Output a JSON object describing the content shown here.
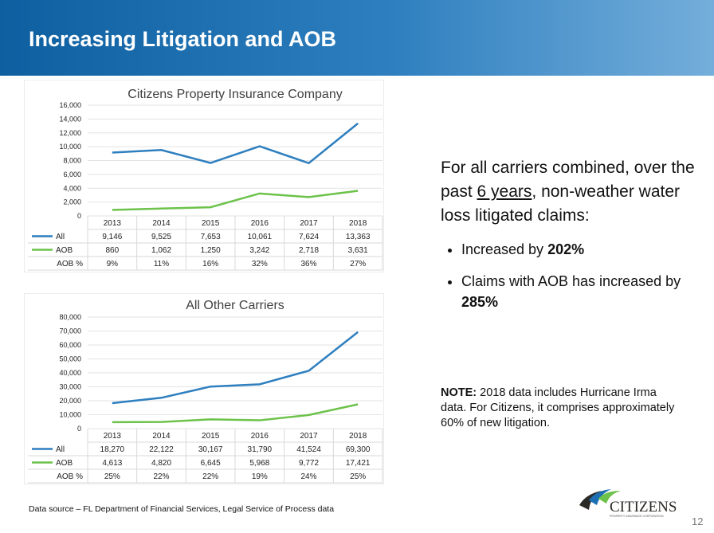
{
  "slide": {
    "title": "Increasing Litigation and AOB",
    "page_number": "12",
    "source": "Data source – FL Department of Financial Services, Legal Service of Process data",
    "logo_text": "CITIZENS",
    "logo_subtext": "PROPERTY INSURANCE CORPORATION"
  },
  "summary": {
    "line1": "For all carriers combined, over the past ",
    "years": "6 years",
    "line2": ", non-weather water loss litigated claims:",
    "bullet1_text": "Increased by ",
    "bullet1_value": "202%",
    "bullet2_text": "Claims with AOB has increased by ",
    "bullet2_value": "285%",
    "note_label": "NOTE:",
    "note_text": " 2018 data includes Hurricane Irma data. For Citizens, it comprises approximately 60% of new litigation."
  },
  "colors": {
    "all": "#2e7fbf",
    "aob": "#6cc24a",
    "banner": "#0d5fa0"
  },
  "chart_data": [
    {
      "type": "line",
      "title": "Citizens Property Insurance Company",
      "categories": [
        "2013",
        "2014",
        "2015",
        "2016",
        "2017",
        "2018"
      ],
      "ylim": [
        0,
        16000
      ],
      "yticks": [
        "0",
        "2,000",
        "4,000",
        "6,000",
        "8,000",
        "10,000",
        "12,000",
        "14,000",
        "16,000"
      ],
      "grid": true,
      "series": [
        {
          "name": "All",
          "values": [
            9146,
            9525,
            7653,
            10061,
            7624,
            13363
          ],
          "labels": [
            "9,146",
            "9,525",
            "7,653",
            "10,061",
            "7,624",
            "13,363"
          ]
        },
        {
          "name": "AOB",
          "values": [
            860,
            1062,
            1250,
            3242,
            2718,
            3631
          ],
          "labels": [
            "860",
            "1,062",
            "1,250",
            "3,242",
            "2,718",
            "3,631"
          ]
        }
      ],
      "extra_row": {
        "name": "AOB %",
        "labels": [
          "9%",
          "11%",
          "16%",
          "32%",
          "36%",
          "27%"
        ]
      }
    },
    {
      "type": "line",
      "title": "All Other Carriers",
      "categories": [
        "2013",
        "2014",
        "2015",
        "2016",
        "2017",
        "2018"
      ],
      "ylim": [
        0,
        80000
      ],
      "yticks": [
        "0",
        "10,000",
        "20,000",
        "30,000",
        "40,000",
        "50,000",
        "60,000",
        "70,000",
        "80,000"
      ],
      "grid": true,
      "series": [
        {
          "name": "All",
          "values": [
            18270,
            22122,
            30167,
            31790,
            41524,
            69300
          ],
          "labels": [
            "18,270",
            "22,122",
            "30,167",
            "31,790",
            "41,524",
            "69,300"
          ]
        },
        {
          "name": "AOB",
          "values": [
            4613,
            4820,
            6645,
            5968,
            9772,
            17421
          ],
          "labels": [
            "4,613",
            "4,820",
            "6,645",
            "5,968",
            "9,772",
            "17,421"
          ]
        }
      ],
      "extra_row": {
        "name": "AOB %",
        "labels": [
          "25%",
          "22%",
          "22%",
          "19%",
          "24%",
          "25%"
        ]
      }
    }
  ]
}
